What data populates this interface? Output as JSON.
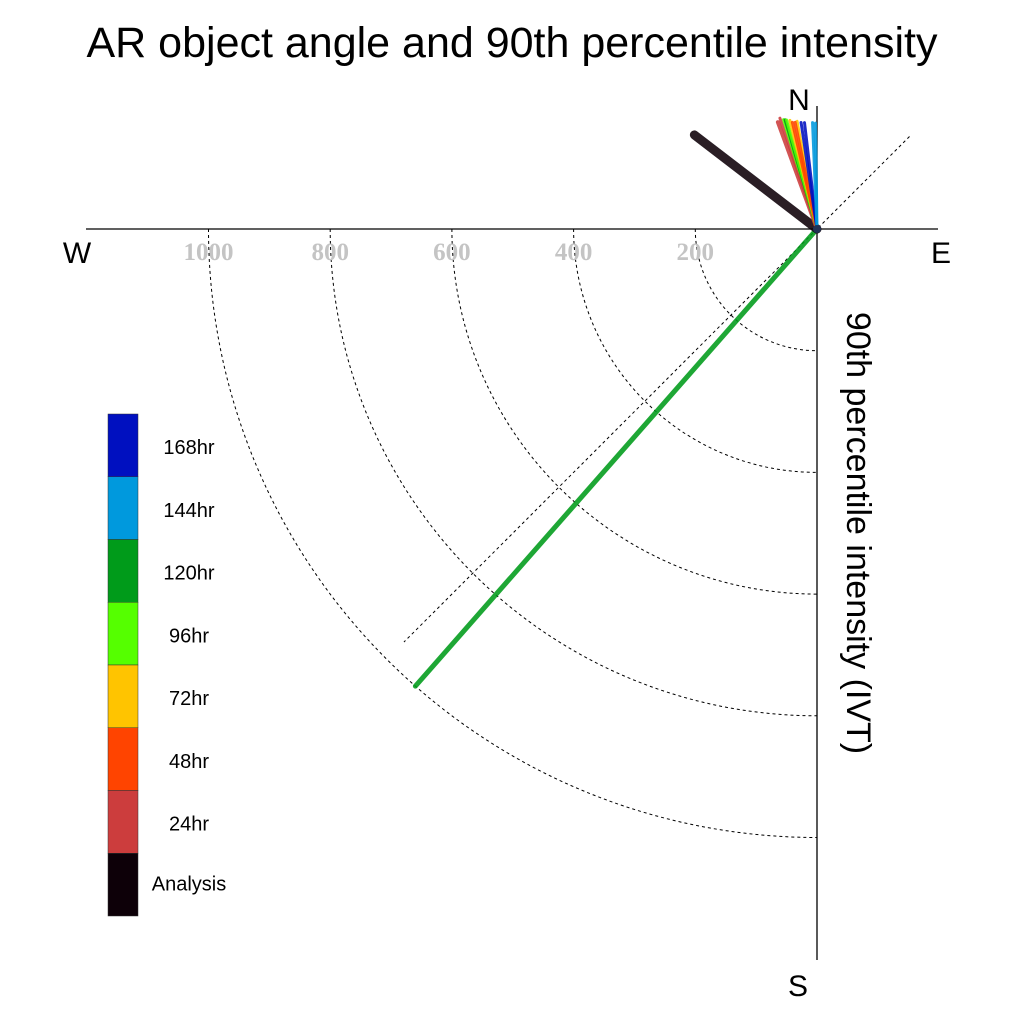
{
  "chart_data": {
    "type": "polar-vector",
    "title": "AR object angle and 90th percentile intensity",
    "ylabel": "90th percentile intensity (IVT)",
    "directions": {
      "north": "N",
      "south": "S",
      "east": "E",
      "west": "W"
    },
    "radial_ticks": [
      200,
      400,
      600,
      800,
      1000
    ],
    "radial_tick_labels": [
      "200",
      "400",
      "600",
      "800",
      "1000"
    ],
    "radial_max": 1200,
    "legend": {
      "placement": "left",
      "entries": [
        {
          "label": "168hr",
          "color": "#0010c0"
        },
        {
          "label": "144hr",
          "color": "#0099dd"
        },
        {
          "label": "120hr",
          "color": "#009b1a"
        },
        {
          "label": "96hr",
          "color": "#55ff00"
        },
        {
          "label": "72hr",
          "color": "#ffc400"
        },
        {
          "label": "48hr",
          "color": "#ff4400"
        },
        {
          "label": "24hr",
          "color": "#cc3d3d"
        },
        {
          "label": "Analysis",
          "color": "#0d0008"
        }
      ]
    },
    "series": [
      {
        "name": "Analysis",
        "color": "#0d0008",
        "angle_deg": -52.5,
        "value": 254,
        "width": 9
      },
      {
        "name": "24hr",
        "color": "#cc3d3d",
        "angle_deg": -20.1,
        "value": 187,
        "width": 4
      },
      {
        "name": "24hr",
        "color": "#cc3d3d",
        "angle_deg": -18.5,
        "value": 192,
        "width": 3
      },
      {
        "name": "48hr",
        "color": "#ff4400",
        "angle_deg": -11.6,
        "value": 179,
        "width": 3
      },
      {
        "name": "48hr",
        "color": "#ff4400",
        "angle_deg": -13.0,
        "value": 180,
        "width": 3
      },
      {
        "name": "72hr",
        "color": "#ffc400",
        "angle_deg": -10.5,
        "value": 180,
        "width": 3
      },
      {
        "name": "72hr",
        "color": "#ffc400",
        "angle_deg": -14.0,
        "value": 184,
        "width": 3
      },
      {
        "name": "96hr",
        "color": "#55ff00",
        "angle_deg": -15.6,
        "value": 186,
        "width": 3
      },
      {
        "name": "96hr",
        "color": "#55ff00",
        "angle_deg": -17.0,
        "value": 188,
        "width": 3
      },
      {
        "name": "120hr",
        "color": "#009b1a",
        "angle_deg": -16.3,
        "value": 187,
        "width": 3
      },
      {
        "name": "120hr",
        "color": "#009b1a",
        "angle_deg": -138.7,
        "value": 1000,
        "width": 5
      },
      {
        "name": "144hr",
        "color": "#0099dd",
        "angle_deg": -2.4,
        "value": 175,
        "width": 3
      },
      {
        "name": "144hr",
        "color": "#0099dd",
        "angle_deg": -0.8,
        "value": 174,
        "width": 3
      },
      {
        "name": "168hr",
        "color": "#0010c0",
        "angle_deg": -6.7,
        "value": 176,
        "width": 3
      },
      {
        "name": "168hr",
        "color": "#0010c0",
        "angle_deg": -8.5,
        "value": 177,
        "width": 3
      }
    ]
  }
}
